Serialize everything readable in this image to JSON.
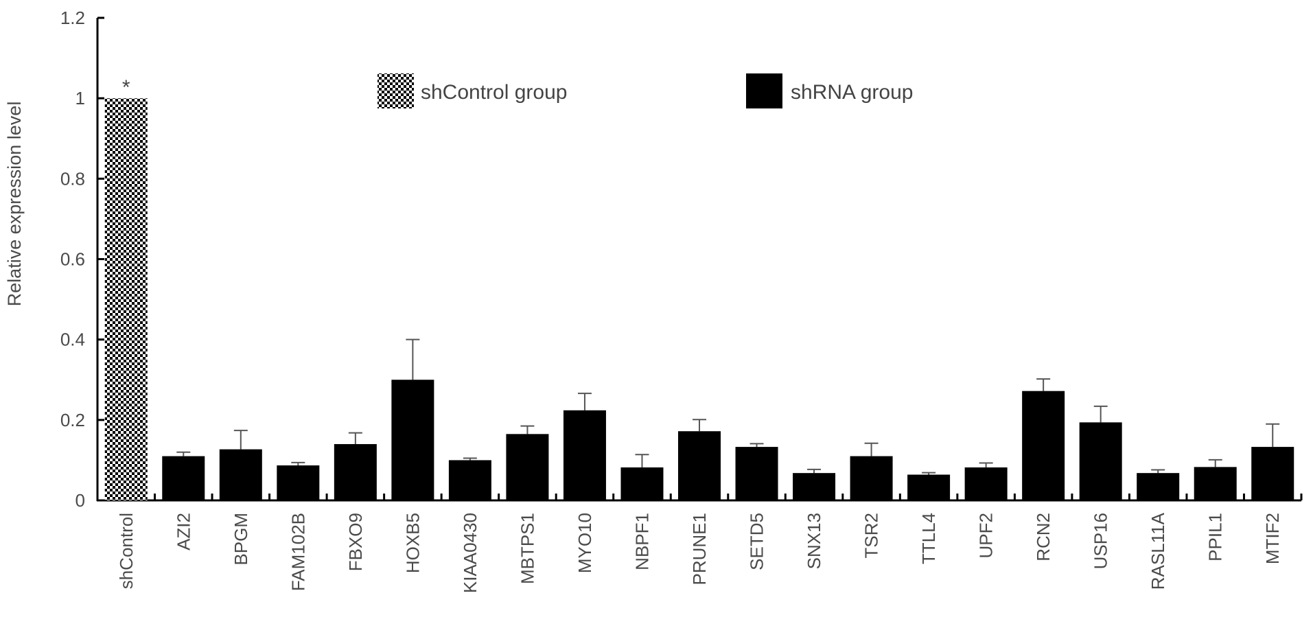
{
  "chart_data": {
    "type": "bar",
    "title": "",
    "xlabel": "",
    "ylabel": "Relative expression level",
    "ylim": [
      0,
      1.2
    ],
    "yticks": [
      0,
      0.2,
      0.4,
      0.6,
      0.8,
      1,
      1.2
    ],
    "ytick_labels": [
      "0",
      "0.2",
      "0.4",
      "0.6",
      "0.8",
      "1",
      "1.2"
    ],
    "grid": false,
    "legend_position": "top-center",
    "categories": [
      "shControl",
      "AZI2",
      "BPGM",
      "FAM102B",
      "FBXO9",
      "HOXB5",
      "KIAA0430",
      "MBTPS1",
      "MYO10",
      "NBPF1",
      "PRUNE1",
      "SETD5",
      "SNX13",
      "TSR2",
      "TTLL4",
      "UPF2",
      "RCN2",
      "USP16",
      "RASL11A",
      "PPIL1",
      "MTIF2"
    ],
    "series": [
      {
        "name": "shControl group",
        "pattern": "checkered",
        "color": "#000000",
        "values": [
          1.0,
          null,
          null,
          null,
          null,
          null,
          null,
          null,
          null,
          null,
          null,
          null,
          null,
          null,
          null,
          null,
          null,
          null,
          null,
          null,
          null
        ],
        "errors": [
          0,
          null,
          null,
          null,
          null,
          null,
          null,
          null,
          null,
          null,
          null,
          null,
          null,
          null,
          null,
          null,
          null,
          null,
          null,
          null,
          null
        ]
      },
      {
        "name": "shRNA group",
        "pattern": "solid",
        "color": "#000000",
        "values": [
          null,
          0.11,
          0.127,
          0.087,
          0.14,
          0.3,
          0.1,
          0.165,
          0.224,
          0.082,
          0.172,
          0.133,
          0.068,
          0.11,
          0.064,
          0.082,
          0.272,
          0.194,
          0.068,
          0.083,
          0.133
        ],
        "errors": [
          null,
          0.01,
          0.047,
          0.007,
          0.028,
          0.1,
          0.005,
          0.02,
          0.042,
          0.032,
          0.029,
          0.008,
          0.009,
          0.032,
          0.005,
          0.011,
          0.03,
          0.04,
          0.008,
          0.018,
          0.057
        ]
      }
    ],
    "annotations": [
      {
        "category": "shControl",
        "text": "*"
      }
    ]
  }
}
